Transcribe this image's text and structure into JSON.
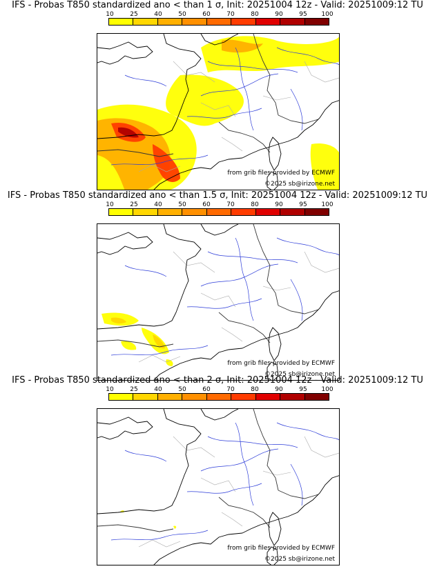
{
  "panels": [
    {
      "title": "IFS - Probas T850  standardized ano < than 1 σ, Init: 20251004 12z - Valid: 20251009:12 TU",
      "variant": 1
    },
    {
      "title": "IFS - Probas T850  standardized ano < than 1.5 σ, Init: 20251004 12z - Valid: 20251009:12 TU",
      "variant": 2
    },
    {
      "title": "IFS - Probas T850  standardized ano < than 2 σ, Init: 20251004 12z - Valid: 20251009:12 TU",
      "variant": 3
    }
  ],
  "colorbar": {
    "ticks": [
      "10",
      "25",
      "40",
      "50",
      "60",
      "70",
      "80",
      "90",
      "95",
      "100"
    ],
    "colors": [
      "#ffff00",
      "#ffd700",
      "#ffb000",
      "#ff9000",
      "#ff6a00",
      "#ff3c00",
      "#e00000",
      "#b00000",
      "#800000"
    ]
  },
  "credits": {
    "source": "from grib files provided by ECMWF",
    "copyright": "©2025 sb@irizone.net"
  },
  "map_colors": {
    "coast": "#000000",
    "border": "#333333",
    "river": "#2a3ad8",
    "admin": "#aaaaaa"
  }
}
